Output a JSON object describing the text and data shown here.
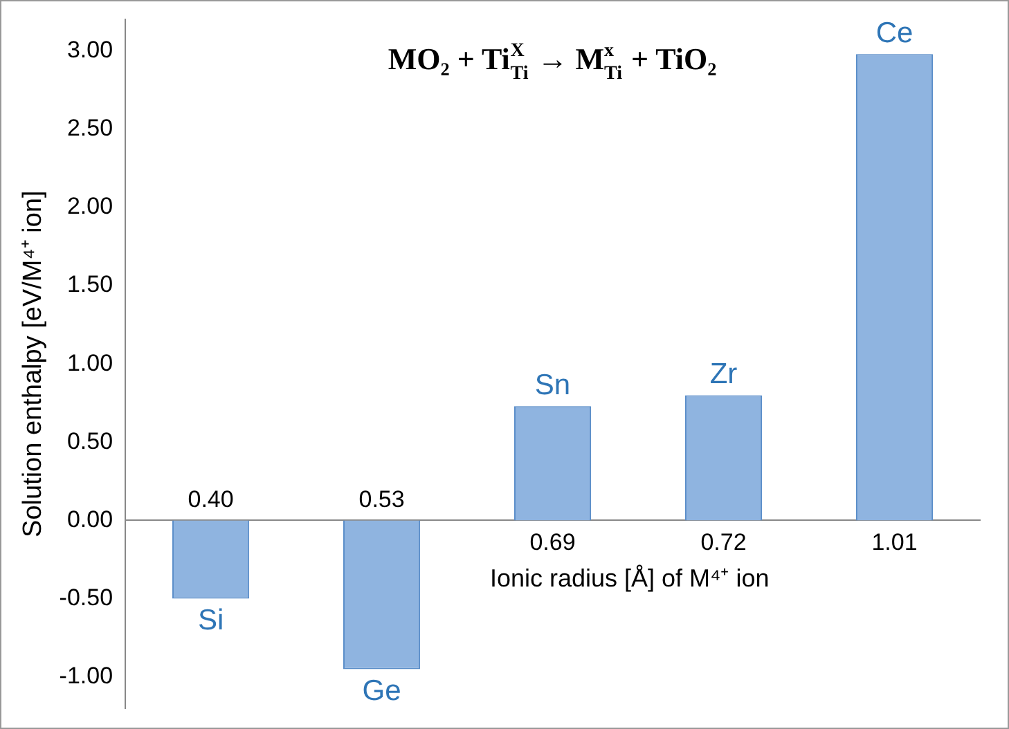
{
  "chart_data": {
    "type": "bar",
    "title": "MO₂ + Ti$_{Ti}$$^{X}$ → M$_{Ti}$$^{x}$ + TiO₂",
    "xlabel": "Ionic radius [Å] of M⁴⁺ ion",
    "ylabel": "Solution enthalpy [eV/M⁴⁺ ion]",
    "categories": [
      "0.40",
      "0.53",
      "0.69",
      "0.72",
      "1.01"
    ],
    "values": [
      -0.5,
      -0.95,
      0.73,
      0.8,
      2.98
    ],
    "color": "#8fb4e0",
    "ylim": [
      -1.2,
      3.2
    ],
    "yticks": [
      {
        "value": -1,
        "label": "-1.00"
      },
      {
        "value": -0.5,
        "label": "-0.50"
      },
      {
        "value": 0,
        "label": "0.00"
      },
      {
        "value": 0.5,
        "label": "0.50"
      },
      {
        "value": 1,
        "label": "1.00"
      },
      {
        "value": 1.5,
        "label": "1.50"
      },
      {
        "value": 2,
        "label": "2.00"
      },
      {
        "value": 2.5,
        "label": "2.50"
      },
      {
        "value": 3,
        "label": "3.00"
      }
    ],
    "annotations": [
      {
        "text": "Si",
        "x": "0.40",
        "y": -0.5
      },
      {
        "text": "Ge",
        "x": "0.53",
        "y": -0.95
      },
      {
        "text": "Sn",
        "x": "0.69",
        "y": 0.73
      },
      {
        "text": "Zr",
        "x": "0.72",
        "y": 0.8
      },
      {
        "text": "Ce",
        "x": "1.01",
        "y": 2.98
      }
    ],
    "grid": false,
    "legend": false
  }
}
